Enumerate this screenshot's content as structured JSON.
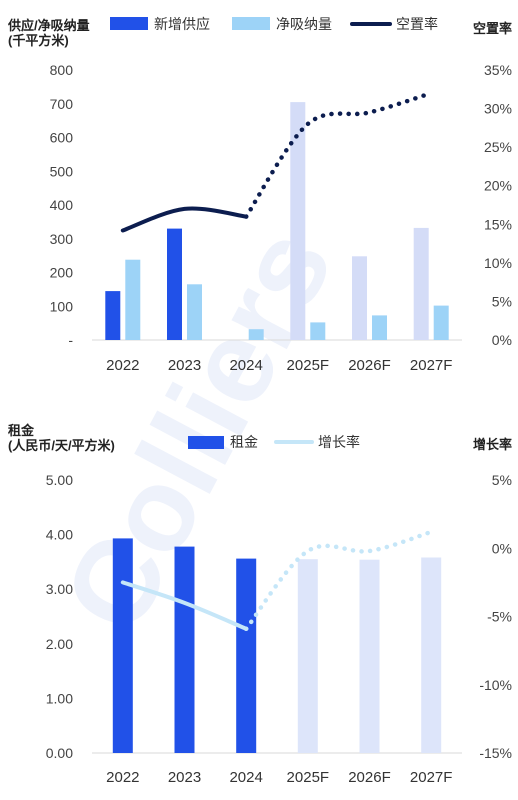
{
  "watermark": "Colliers",
  "chart_data": [
    {
      "type": "bar+line",
      "ylabel_left": "供应/净吸纳量\n(千平方米)",
      "ylabel_right": "空置率",
      "categories": [
        "2022",
        "2023",
        "2024",
        "2025F",
        "2026F",
        "2027F"
      ],
      "forecast_from_index": 3,
      "y_left": {
        "min": 0,
        "max": 800,
        "ticks": [
          "-",
          "100",
          "200",
          "300",
          "400",
          "500",
          "600",
          "700",
          "800"
        ]
      },
      "y_right": {
        "min": 0,
        "max": 35,
        "ticks": [
          "0%",
          "5%",
          "10%",
          "15%",
          "20%",
          "25%",
          "30%",
          "35%"
        ]
      },
      "series": [
        {
          "name": "新增供应",
          "kind": "bar",
          "values": [
            145,
            330,
            0,
            705,
            248,
            332
          ],
          "color": "#2151e8",
          "forecast_color": "#d4dcf7"
        },
        {
          "name": "净吸纳量",
          "kind": "bar",
          "values": [
            238,
            165,
            32,
            52,
            73,
            102
          ],
          "color": "#9dd3f7",
          "forecast_color": "#9dd3f7"
        },
        {
          "name": "空置率",
          "kind": "line",
          "axis": "right",
          "values": [
            14.2,
            17.0,
            16.0,
            28.0,
            29.5,
            32.0
          ],
          "color": "#0c1d4f",
          "forecast_style": "dotted"
        }
      ]
    },
    {
      "type": "bar+line",
      "ylabel_left": "租金\n(人民币/天/平方米)",
      "ylabel_right": "增长率",
      "categories": [
        "2022",
        "2023",
        "2024",
        "2025F",
        "2026F",
        "2027F"
      ],
      "forecast_from_index": 3,
      "y_left": {
        "min": 0,
        "max": 5,
        "ticks": [
          "0.00",
          "1.00",
          "2.00",
          "3.00",
          "4.00",
          "5.00"
        ]
      },
      "y_right": {
        "min": -15,
        "max": 5,
        "ticks": [
          "-15%",
          "-10%",
          "-5%",
          "0%",
          "5%"
        ]
      },
      "series": [
        {
          "name": "租金",
          "kind": "bar",
          "values": [
            3.93,
            3.78,
            3.56,
            3.55,
            3.54,
            3.58
          ],
          "color": "#2151e8",
          "forecast_color": "#dde5fa"
        },
        {
          "name": "增长率",
          "kind": "line",
          "axis": "right",
          "values": [
            -2.5,
            -4.0,
            -5.9,
            -0.2,
            -0.2,
            1.2
          ],
          "color": "#c5e6f8",
          "forecast_style": "dotted"
        }
      ]
    }
  ]
}
